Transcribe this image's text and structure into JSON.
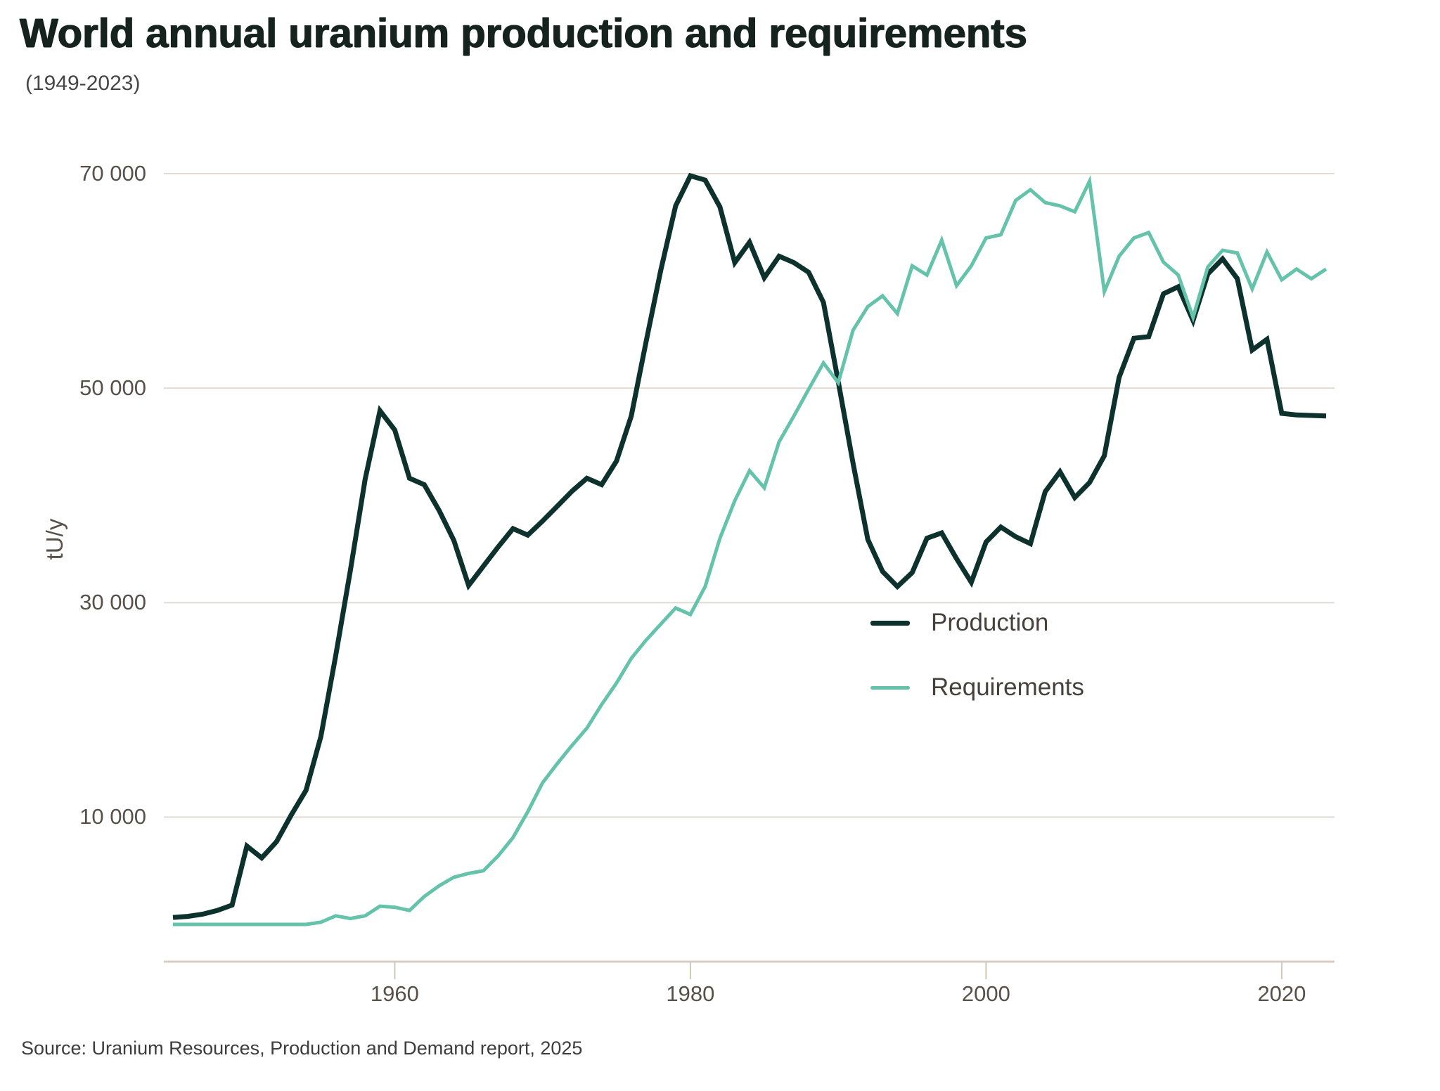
{
  "header": {
    "title": "World annual uranium production and requirements",
    "subtitle": "(1949-2023)"
  },
  "source": "Source: Uranium Resources, Production and Demand report, 2025",
  "colors": {
    "production": "#0d312c",
    "requirements": "#65c3ab",
    "gridline": "#e1dcd3",
    "axis_line": "#d5cfc3",
    "tick_mark": "#cfc8bb",
    "tick_text": "#57514a",
    "title_text": "#15221e",
    "background": "#ffffff"
  },
  "chart_data": {
    "type": "line",
    "title": "World annual uranium production and requirements",
    "subtitle": "(1949-2023)",
    "xlabel": "",
    "ylabel": "tU/y",
    "grid": "horizontal",
    "legend_position": "inside-right",
    "ylim": [
      0,
      70000
    ],
    "yticks": [
      10000,
      30000,
      50000,
      70000
    ],
    "ytick_labels": [
      "10 000",
      "30 000",
      "50 000",
      "70 000"
    ],
    "xticks": [
      1960,
      1980,
      2000,
      2020
    ],
    "xtick_labels": [
      "1960",
      "1980",
      "2000",
      "2020"
    ],
    "x": [
      1945,
      1946,
      1947,
      1948,
      1949,
      1950,
      1951,
      1952,
      1953,
      1954,
      1955,
      1956,
      1957,
      1958,
      1959,
      1960,
      1961,
      1962,
      1963,
      1964,
      1965,
      1966,
      1967,
      1968,
      1969,
      1970,
      1971,
      1972,
      1973,
      1974,
      1975,
      1976,
      1977,
      1978,
      1979,
      1980,
      1981,
      1982,
      1983,
      1984,
      1985,
      1986,
      1987,
      1988,
      1989,
      1990,
      1991,
      1992,
      1993,
      1994,
      1995,
      1996,
      1997,
      1998,
      1999,
      2000,
      2001,
      2002,
      2003,
      2004,
      2005,
      2006,
      2007,
      2008,
      2009,
      2010,
      2011,
      2012,
      2013,
      2014,
      2015,
      2016,
      2017,
      2018,
      2019,
      2020,
      2021,
      2022,
      2023
    ],
    "series": [
      {
        "name": "Production",
        "color_key": "production",
        "values": [
          650,
          750,
          950,
          1300,
          1800,
          7300,
          6200,
          7700,
          10200,
          12500,
          17500,
          25000,
          33000,
          41500,
          47900,
          46100,
          41600,
          41000,
          38600,
          35800,
          31600,
          33400,
          35200,
          36900,
          36300,
          37600,
          39000,
          40400,
          41600,
          41000,
          43200,
          47400,
          54300,
          61000,
          67000,
          69800,
          69400,
          66900,
          61700,
          63600,
          60300,
          62300,
          61700,
          60800,
          58000,
          50600,
          43000,
          35900,
          32900,
          31500,
          32800,
          36000,
          36500,
          34100,
          31900,
          35650,
          37050,
          36150,
          35500,
          40350,
          42200,
          39800,
          41200,
          43700,
          51000,
          54650,
          54800,
          58800,
          59450,
          56300,
          60650,
          62050,
          60200,
          53550,
          54550,
          47650,
          47500,
          47450,
          47400
        ]
      },
      {
        "name": "Requirements",
        "color_key": "requirements",
        "values": [
          0,
          0,
          0,
          0,
          0,
          0,
          0,
          0,
          0,
          0,
          200,
          800,
          550,
          800,
          1700,
          1600,
          1300,
          2600,
          3600,
          4400,
          4750,
          5000,
          6400,
          8100,
          10500,
          13200,
          15000,
          16700,
          18300,
          20500,
          22500,
          24800,
          26500,
          28000,
          29500,
          28900,
          31500,
          36000,
          39500,
          42300,
          40700,
          45000,
          47400,
          49900,
          52350,
          50500,
          55400,
          57600,
          58600,
          56950,
          61400,
          60550,
          63800,
          59550,
          61400,
          64000,
          64300,
          67500,
          68500,
          67300,
          67000,
          66450,
          69300,
          59000,
          62300,
          64000,
          64500,
          61750,
          60550,
          56600,
          61300,
          62850,
          62600,
          59250,
          62700,
          60100,
          61100,
          60200,
          61100
        ]
      }
    ]
  }
}
